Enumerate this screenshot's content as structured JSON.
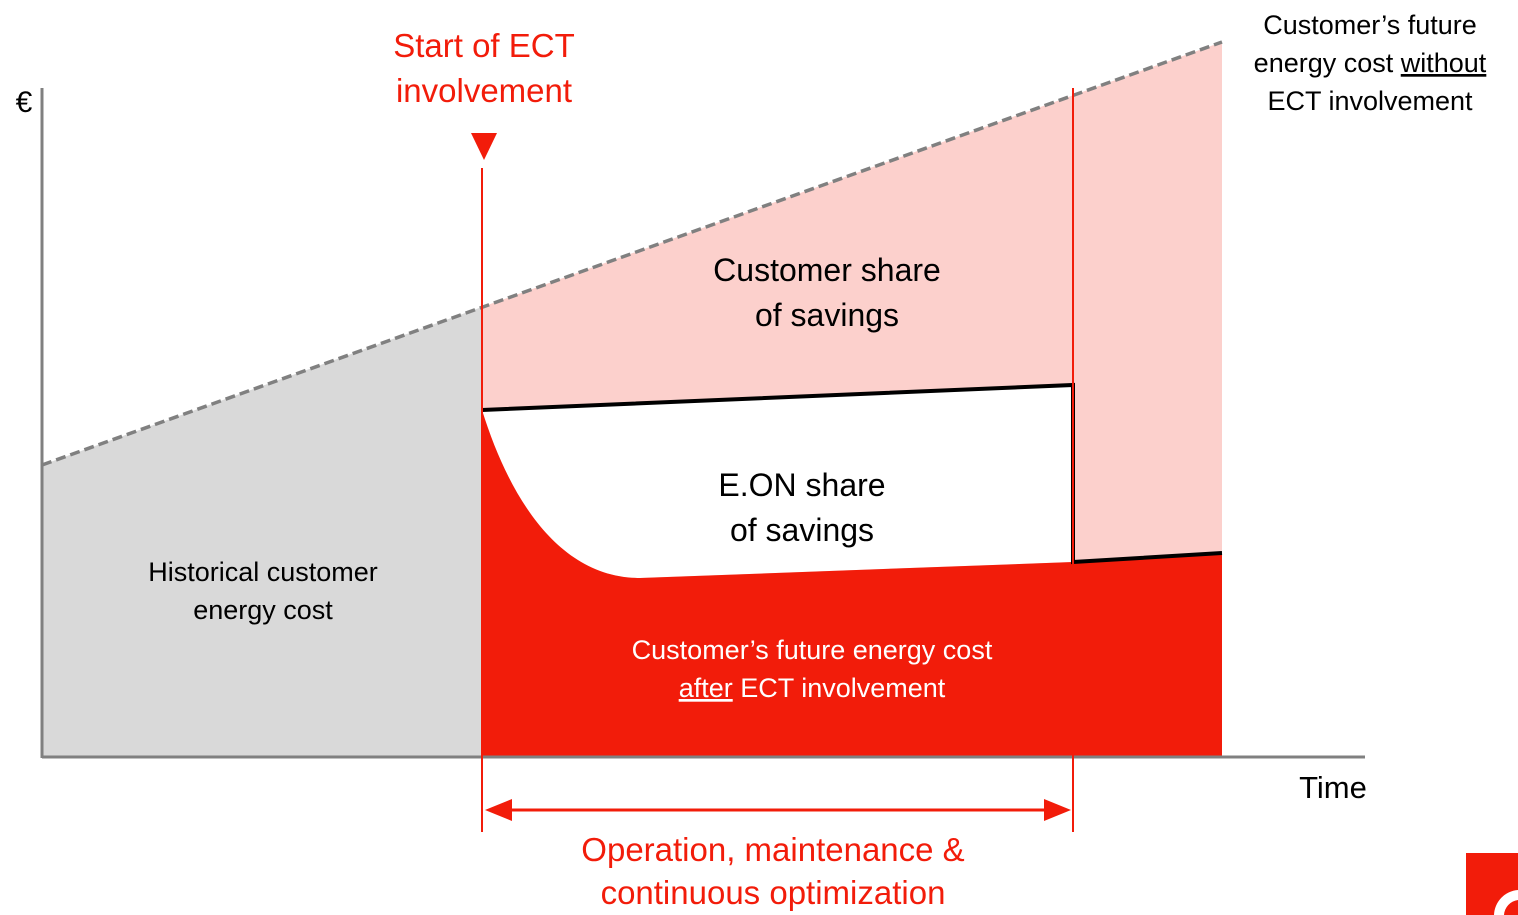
{
  "y_axis_label": "€",
  "x_axis_label": "Time",
  "start_label": {
    "lines": [
      "Start of ECT",
      "involvement"
    ]
  },
  "future_without": {
    "line1": "Customer’s future",
    "line2_plain": "energy cost ",
    "line2_underlined": "without",
    "line3": "ECT involvement"
  },
  "customer_share": {
    "lines": [
      "Customer share",
      "of savings"
    ]
  },
  "eon_share": {
    "lines": [
      "E.ON share",
      "of savings"
    ]
  },
  "historical": {
    "lines": [
      "Historical customer",
      "energy cost"
    ]
  },
  "future_after": {
    "line1": "Customer’s future energy cost",
    "line2_underlined": "after",
    "line2_plain": " ECT involvement"
  },
  "operation_label": {
    "lines": [
      "Operation, maintenance &",
      "continuous optimization"
    ]
  }
}
